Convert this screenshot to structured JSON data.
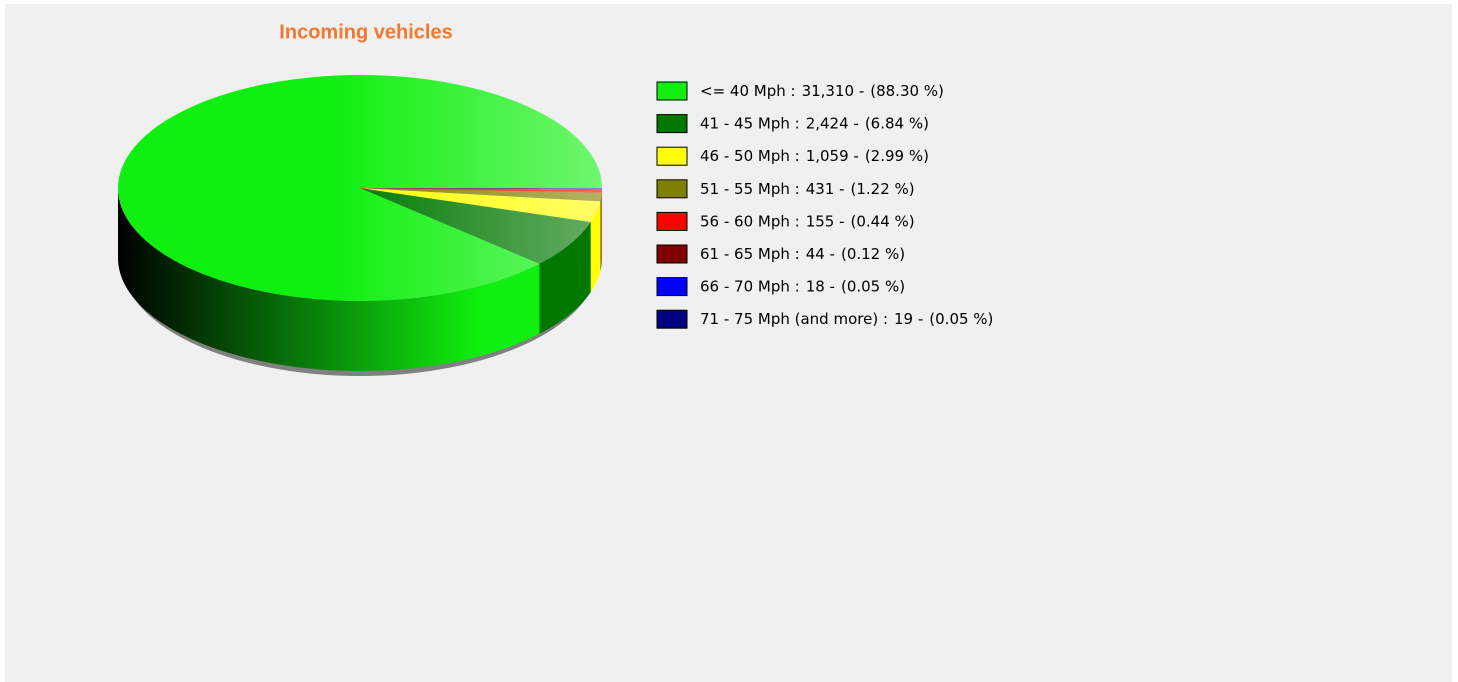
{
  "chart_data": {
    "type": "pie3d",
    "title": "Incoming vehicles",
    "categories": [
      "<= 40 Mph :",
      "41 - 45 Mph :",
      "46 - 50 Mph :",
      "51 - 55 Mph :",
      "56 - 60 Mph :",
      "61 - 65 Mph :",
      "66 - 70 Mph :",
      "71 - 75 Mph (and more) :"
    ],
    "values": [
      31310,
      2424,
      1059,
      431,
      155,
      44,
      18,
      19
    ],
    "value_labels": [
      "31,310 -",
      "2,424 -",
      "1,059 -",
      "431 -",
      "155 -",
      "44 -",
      "18 -",
      "19 -"
    ],
    "percents": [
      88.3,
      6.84,
      2.99,
      1.22,
      0.44,
      0.12,
      0.05,
      0.05
    ],
    "percent_labels": [
      "(88.30 %)",
      "(6.84 %)",
      "(2.99 %)",
      "(1.22 %)",
      "(0.44 %)",
      "(0.12 %)",
      "(0.05 %)",
      "(0.05 %)"
    ],
    "colors": [
      "#10f010",
      "#007800",
      "#ffff00",
      "#808000",
      "#ff0000",
      "#800000",
      "#0000ff",
      "#000080"
    ]
  }
}
